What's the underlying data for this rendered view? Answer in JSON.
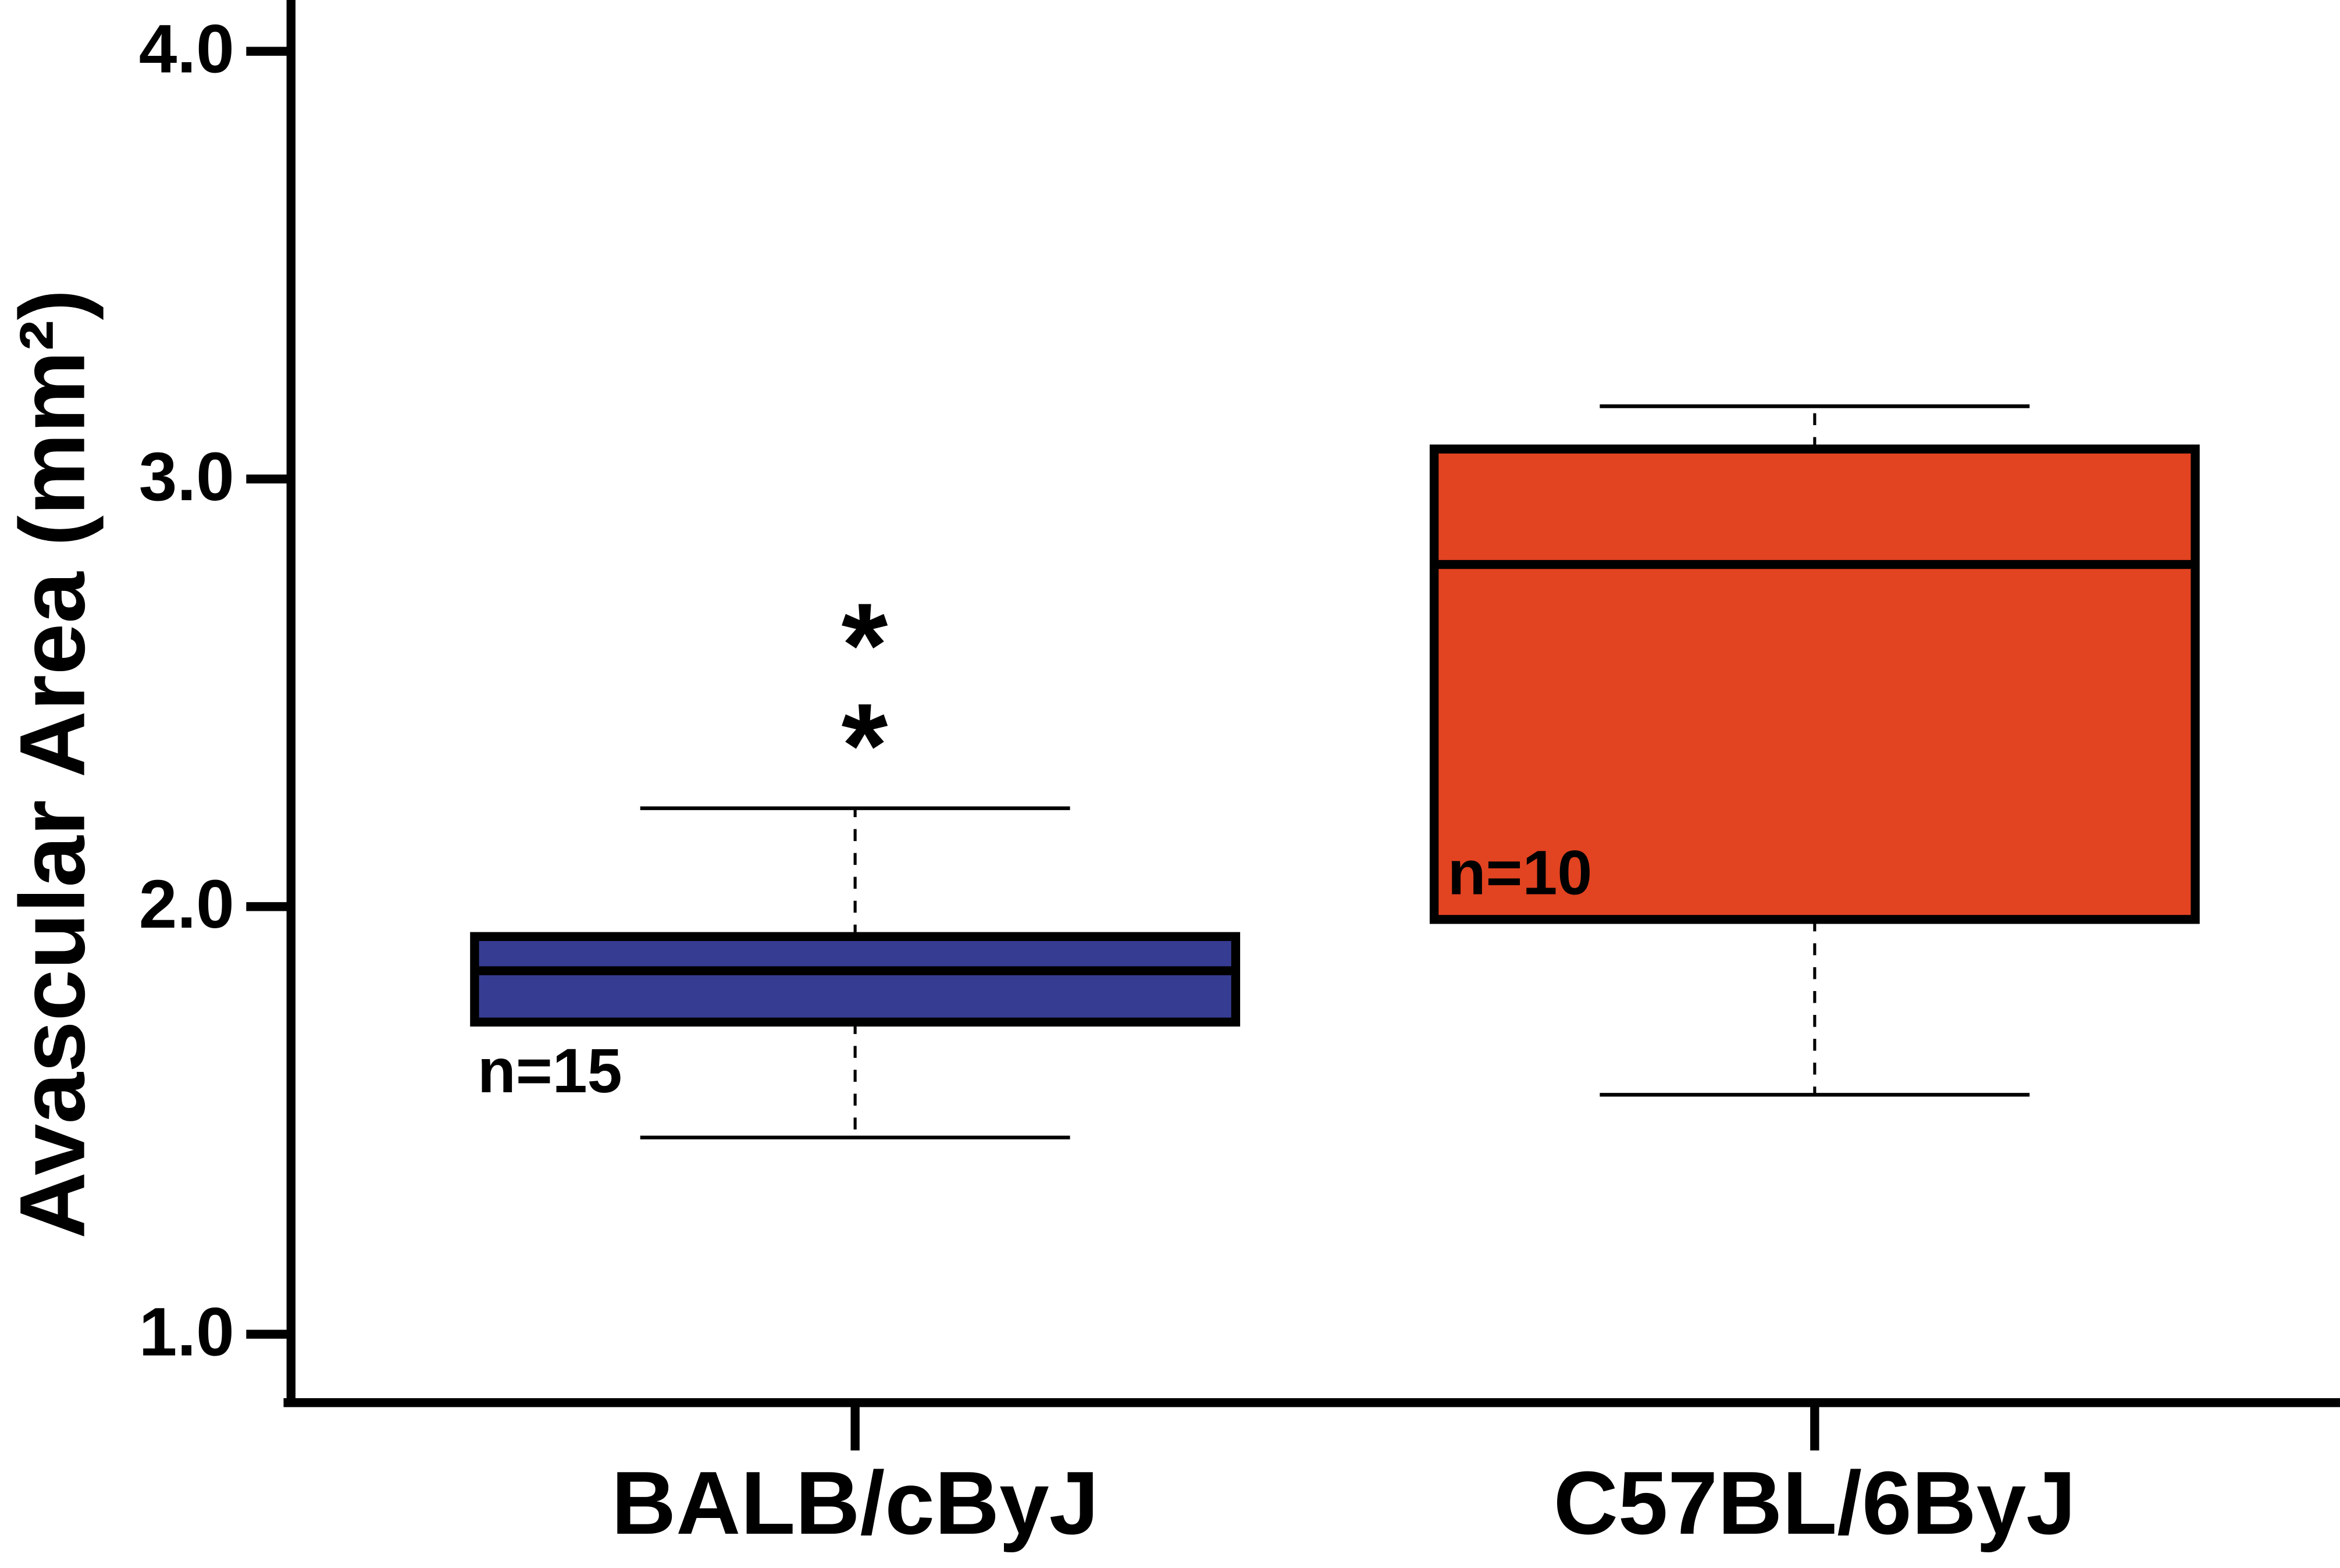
{
  "chart_data": {
    "type": "box",
    "y_label": "Avascular Area (mm²)",
    "categories": [
      "BALB/cByJ",
      "C57BL/6ByJ"
    ],
    "colors": [
      "#363c92",
      "#e24321"
    ],
    "stats": [
      {
        "min": 1.46,
        "q1": 1.73,
        "median": 1.85,
        "q3": 1.93,
        "max": 2.23
      },
      {
        "min": 1.56,
        "q1": 1.97,
        "median": 2.8,
        "q3": 3.07,
        "max": 3.17
      }
    ],
    "n_labels": [
      "n=15",
      "n=10"
    ],
    "annotation": "**",
    "ylim": [
      0.84,
      4.12
    ],
    "yticks": [
      {
        "value": 1,
        "label": "1.0"
      },
      {
        "value": 2,
        "label": "2.0"
      },
      {
        "value": 3,
        "label": "3.0"
      },
      {
        "value": 4,
        "label": "4.0"
      }
    ]
  }
}
